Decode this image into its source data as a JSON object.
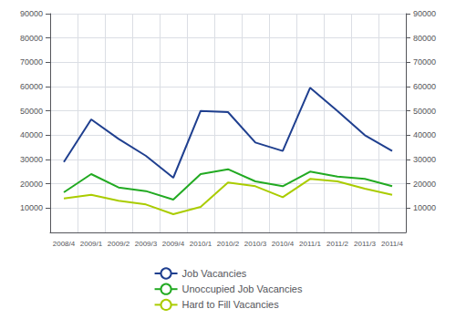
{
  "chart_data": {
    "type": "line",
    "categories": [
      "2008/4",
      "2009/1",
      "2009/2",
      "2009/3",
      "2009/4",
      "2010/1",
      "2010/2",
      "2010/3",
      "2010/4",
      "2011/1",
      "2011/2",
      "2011/3",
      "2011/4"
    ],
    "series": [
      {
        "name": "Job Vacancies",
        "color": "#1f3f8f",
        "values": [
          29000,
          46500,
          38500,
          31500,
          22500,
          50000,
          49500,
          37000,
          33500,
          59500,
          50000,
          40000,
          33500
        ]
      },
      {
        "name": "Unoccupied Job Vacancies",
        "color": "#22aa22",
        "values": [
          16500,
          24000,
          18500,
          17000,
          13500,
          24000,
          26000,
          21000,
          19000,
          25000,
          23000,
          22000,
          19000
        ]
      },
      {
        "name": "Hard to Fill Vacancies",
        "color": "#aacc00",
        "values": [
          14000,
          15500,
          13000,
          11500,
          7500,
          10500,
          20500,
          19000,
          14500,
          22000,
          21000,
          18000,
          15500
        ]
      }
    ],
    "ylim": [
      0,
      90000
    ],
    "yticks": [
      10000,
      20000,
      30000,
      40000,
      50000,
      60000,
      70000,
      80000,
      90000
    ],
    "y2lim": [
      0,
      90000
    ],
    "y2ticks": [
      10000,
      20000,
      30000,
      40000,
      50000,
      60000,
      70000,
      80000,
      90000
    ],
    "grid": true,
    "legend": "bottom"
  }
}
